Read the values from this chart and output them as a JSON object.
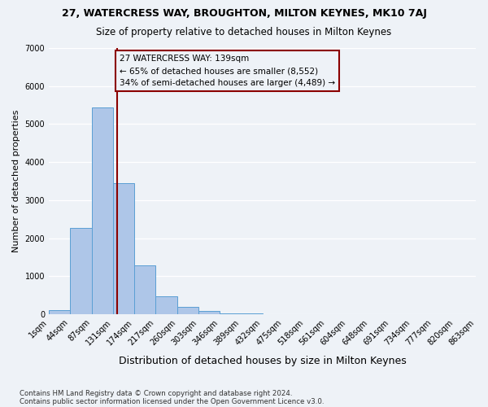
{
  "title1": "27, WATERCRESS WAY, BROUGHTON, MILTON KEYNES, MK10 7AJ",
  "title2": "Size of property relative to detached houses in Milton Keynes",
  "xlabel": "Distribution of detached houses by size in Milton Keynes",
  "ylabel": "Number of detached properties",
  "bar_values": [
    100,
    2280,
    5430,
    3450,
    1290,
    470,
    190,
    80,
    30,
    15,
    10,
    8,
    5,
    3,
    2,
    2,
    2,
    2,
    2,
    2
  ],
  "bin_labels": [
    "1sqm",
    "44sqm",
    "87sqm",
    "131sqm",
    "174sqm",
    "217sqm",
    "260sqm",
    "303sqm",
    "346sqm",
    "389sqm",
    "432sqm",
    "475sqm",
    "518sqm",
    "561sqm",
    "604sqm",
    "648sqm",
    "691sqm",
    "734sqm",
    "777sqm",
    "820sqm",
    "863sqm"
  ],
  "bar_color": "#aec6e8",
  "bar_edgecolor": "#5a9fd4",
  "property_size_sqm": 139,
  "vline_color": "#8b0000",
  "annotation_box_edgecolor": "#8b0000",
  "annotation_line1": "27 WATERCRESS WAY: 139sqm",
  "annotation_line2": "← 65% of detached houses are smaller (8,552)",
  "annotation_line3": "34% of semi-detached houses are larger (4,489) →",
  "ylim": [
    0,
    7000
  ],
  "footer1": "Contains HM Land Registry data © Crown copyright and database right 2024.",
  "footer2": "Contains public sector information licensed under the Open Government Licence v3.0.",
  "bg_color": "#eef2f7"
}
